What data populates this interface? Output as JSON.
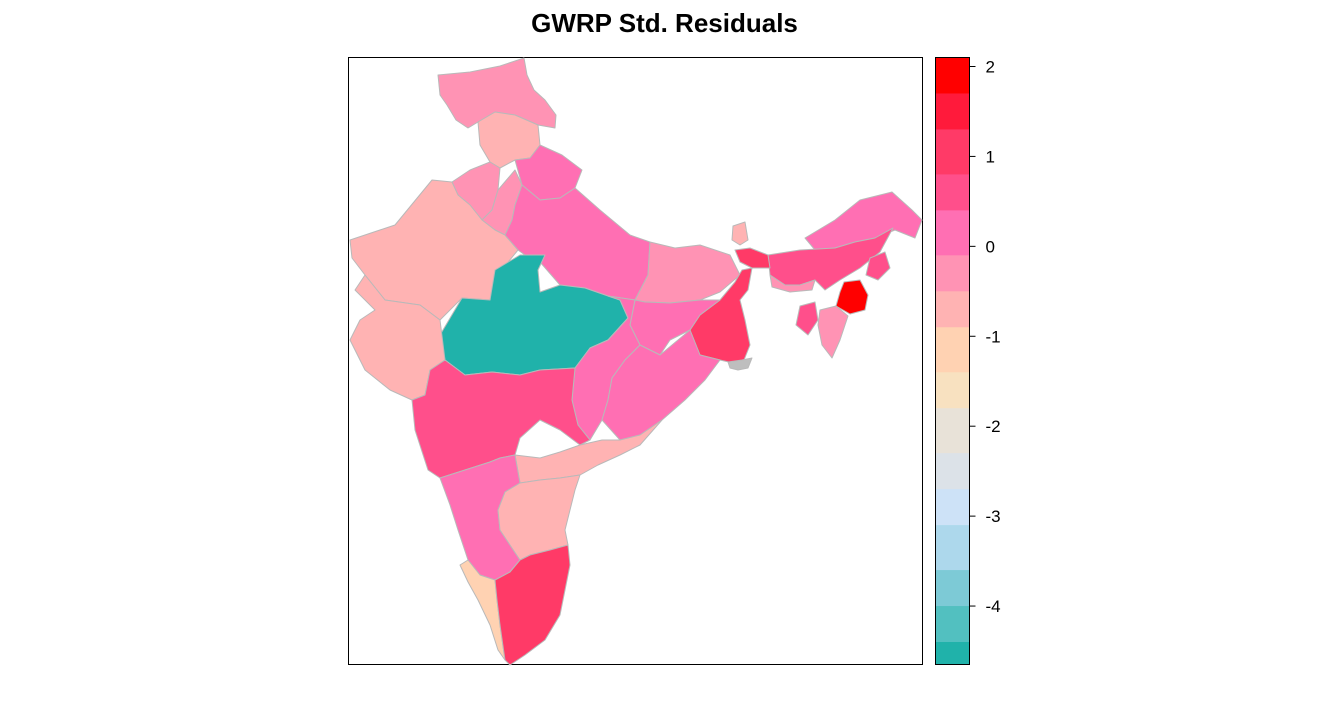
{
  "title": "GWRP Std. Residuals",
  "legend": {
    "ticks": [
      "2",
      "1",
      "0",
      "-1",
      "-2",
      "-3",
      "-4"
    ],
    "tick_values": [
      2,
      1,
      0,
      -1,
      -2,
      -3,
      -4
    ],
    "range": [
      -4.65,
      2.1
    ],
    "bins": [
      {
        "lo": 1.7,
        "hi": 2.1,
        "color": "#ff0000"
      },
      {
        "lo": 1.3,
        "hi": 1.7,
        "color": "#ff1a3b"
      },
      {
        "lo": 0.8,
        "hi": 1.3,
        "color": "#ff3a67"
      },
      {
        "lo": 0.4,
        "hi": 0.8,
        "color": "#ff4f8b"
      },
      {
        "lo": -0.1,
        "hi": 0.4,
        "color": "#ff6fb3"
      },
      {
        "lo": -0.5,
        "hi": -0.1,
        "color": "#ff93b4"
      },
      {
        "lo": -0.9,
        "hi": -0.5,
        "color": "#ffb3b3"
      },
      {
        "lo": -1.4,
        "hi": -0.9,
        "color": "#ffd2b2"
      },
      {
        "lo": -1.8,
        "hi": -1.4,
        "color": "#f8e1c0"
      },
      {
        "lo": -2.3,
        "hi": -1.8,
        "color": "#e8e2d8"
      },
      {
        "lo": -2.7,
        "hi": -2.3,
        "color": "#dce2e8"
      },
      {
        "lo": -3.1,
        "hi": -2.7,
        "color": "#cde2f7"
      },
      {
        "lo": -3.6,
        "hi": -3.1,
        "color": "#add8ec"
      },
      {
        "lo": -4.0,
        "hi": -3.6,
        "color": "#7dcad6"
      },
      {
        "lo": -4.4,
        "hi": -4.0,
        "color": "#52c0c0"
      },
      {
        "lo": -4.65,
        "hi": -4.4,
        "color": "#20b2aa"
      }
    ]
  },
  "map": {
    "missing_color": "#bebebe",
    "regions": [
      {
        "name": "jammu-kashmir",
        "color": "#ff93b4"
      },
      {
        "name": "himachal-pradesh",
        "color": "#ffb3b3"
      },
      {
        "name": "punjab",
        "color": "#ff93b4"
      },
      {
        "name": "uttarakhand",
        "color": "#ff6fb3"
      },
      {
        "name": "haryana",
        "color": "#ff93b4"
      },
      {
        "name": "rajasthan",
        "color": "#ffb3b3"
      },
      {
        "name": "uttar-pradesh",
        "color": "#ff6fb3"
      },
      {
        "name": "bihar",
        "color": "#ff93b4"
      },
      {
        "name": "sikkim",
        "color": "#ffb3b3"
      },
      {
        "name": "arunachal-pradesh",
        "color": "#ff6fb3"
      },
      {
        "name": "assam",
        "color": "#ff4f8b"
      },
      {
        "name": "meghalaya",
        "color": "#ff93b4"
      },
      {
        "name": "nagaland",
        "color": "#ff4f8b"
      },
      {
        "name": "manipur",
        "color": "#ff0000"
      },
      {
        "name": "mizoram",
        "color": "#ff93b4"
      },
      {
        "name": "tripura",
        "color": "#ff4f8b"
      },
      {
        "name": "west-bengal-north",
        "color": "#ff3a67"
      },
      {
        "name": "west-bengal",
        "color": "#ff3a67"
      },
      {
        "name": "jharkhand",
        "color": "#ff6fb3"
      },
      {
        "name": "madhya-pradesh",
        "color": "#20b2aa"
      },
      {
        "name": "gujarat",
        "color": "#ffb3b3"
      },
      {
        "name": "chhattisgarh",
        "color": "#ff6fb3"
      },
      {
        "name": "odisha",
        "color": "#ff6fb3"
      },
      {
        "name": "sundarbans",
        "color": "#bebebe"
      },
      {
        "name": "maharashtra",
        "color": "#ff4f8b"
      },
      {
        "name": "andhra-pradesh-north",
        "color": "#ffb3b3"
      },
      {
        "name": "karnataka",
        "color": "#ff6fb3"
      },
      {
        "name": "andhra-pradesh-south",
        "color": "#ffb3b3"
      },
      {
        "name": "kerala",
        "color": "#ffd2b2"
      },
      {
        "name": "tamil-nadu",
        "color": "#ff3a67"
      }
    ]
  }
}
